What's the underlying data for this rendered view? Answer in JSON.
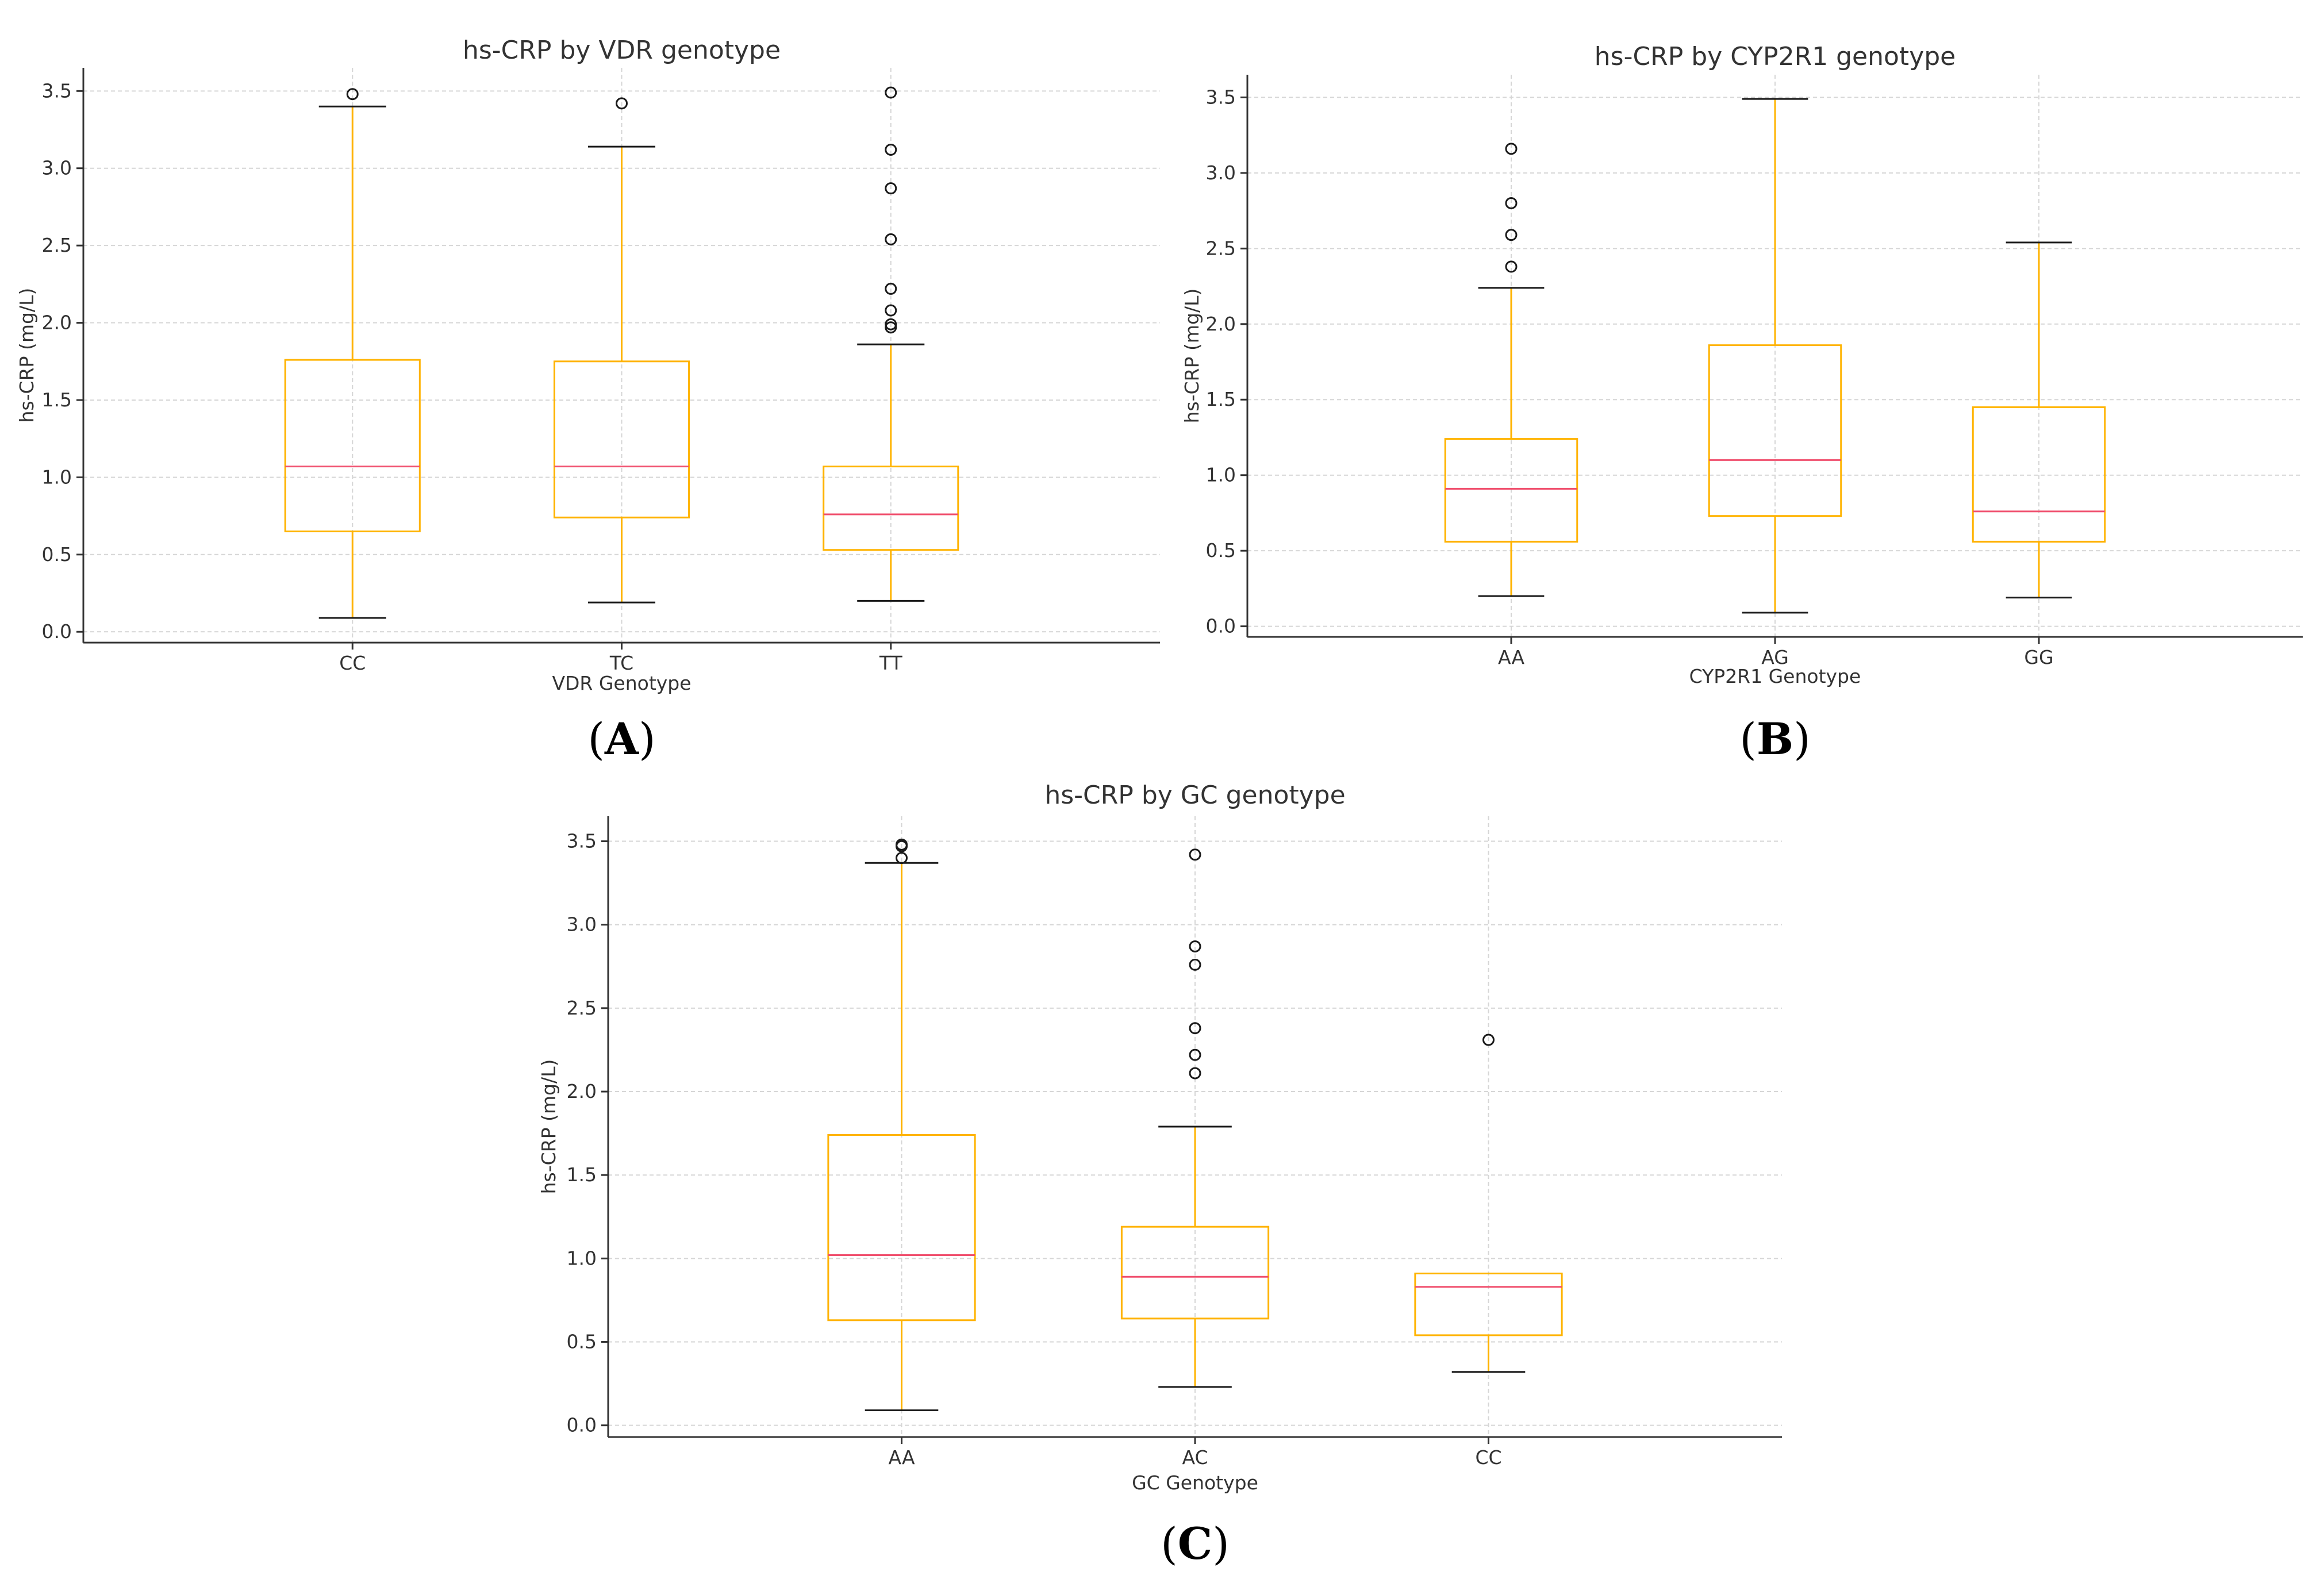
{
  "colors": {
    "box": "#FFB300",
    "whisker": "#FFB300",
    "median": "#F0506E",
    "cap": "#1a1a1a",
    "flier": "#1a1a1a",
    "grid": "#d6d6d6",
    "axis": "#333333"
  },
  "chart_data": [
    {
      "id": "A",
      "type": "box",
      "panel_label": "A",
      "title": "hs-CRP by VDR genotype",
      "xlabel": "VDR Genotype",
      "ylabel": "hs-CRP (mg/L)",
      "ylim": [
        -0.07,
        3.65
      ],
      "yticks": [
        0.0,
        0.5,
        1.0,
        1.5,
        2.0,
        2.5,
        3.0,
        3.5
      ],
      "ytick_labels": [
        "0.0",
        "0.5",
        "1.0",
        "1.5",
        "2.0",
        "2.5",
        "3.0",
        "3.5"
      ],
      "grid": true,
      "categories": [
        "CC",
        "TC",
        "TT"
      ],
      "boxes": [
        {
          "label": "CC",
          "whislo": 0.09,
          "q1": 0.65,
          "med": 1.07,
          "q3": 1.76,
          "whishi": 3.4,
          "fliers": [
            3.48
          ]
        },
        {
          "label": "TC",
          "whislo": 0.19,
          "q1": 0.74,
          "med": 1.07,
          "q3": 1.75,
          "whishi": 3.14,
          "fliers": [
            3.42
          ]
        },
        {
          "label": "TT",
          "whislo": 0.2,
          "q1": 0.53,
          "med": 0.76,
          "q3": 1.07,
          "whishi": 1.86,
          "fliers": [
            1.97,
            1.99,
            2.08,
            2.22,
            2.54,
            2.87,
            3.12,
            3.49
          ]
        }
      ]
    },
    {
      "id": "B",
      "type": "box",
      "panel_label": "B",
      "title": "hs-CRP by CYP2R1 genotype",
      "xlabel": "CYP2R1 Genotype",
      "ylabel": "hs-CRP (mg/L)",
      "ylim": [
        -0.07,
        3.65
      ],
      "yticks": [
        0.0,
        0.5,
        1.0,
        1.5,
        2.0,
        2.5,
        3.0,
        3.5
      ],
      "ytick_labels": [
        "0.0",
        "0.5",
        "1.0",
        "1.5",
        "2.0",
        "2.5",
        "3.0",
        "3.5"
      ],
      "grid": true,
      "categories": [
        "AA",
        "AG",
        "GG"
      ],
      "boxes": [
        {
          "label": "AA",
          "whislo": 0.2,
          "q1": 0.56,
          "med": 0.91,
          "q3": 1.24,
          "whishi": 2.24,
          "fliers": [
            2.38,
            2.59,
            2.8,
            3.16
          ]
        },
        {
          "label": "AG",
          "whislo": 0.09,
          "q1": 0.73,
          "med": 1.1,
          "q3": 1.86,
          "whishi": 3.49,
          "fliers": []
        },
        {
          "label": "GG",
          "whislo": 0.19,
          "q1": 0.56,
          "med": 0.76,
          "q3": 1.45,
          "whishi": 2.54,
          "fliers": []
        }
      ]
    },
    {
      "id": "C",
      "type": "box",
      "panel_label": "C",
      "title": "hs-CRP by GC genotype",
      "xlabel": "GC Genotype",
      "ylabel": "hs-CRP (mg/L)",
      "ylim": [
        -0.07,
        3.65
      ],
      "yticks": [
        0.0,
        0.5,
        1.0,
        1.5,
        2.0,
        2.5,
        3.0,
        3.5
      ],
      "ytick_labels": [
        "0.0",
        "0.5",
        "1.0",
        "1.5",
        "2.0",
        "2.5",
        "3.0",
        "3.5"
      ],
      "grid": true,
      "categories": [
        "AA",
        "AC",
        "CC"
      ],
      "boxes": [
        {
          "label": "AA",
          "whislo": 0.09,
          "q1": 0.63,
          "med": 1.02,
          "q3": 1.74,
          "whishi": 3.37,
          "fliers": [
            3.4,
            3.47,
            3.48
          ]
        },
        {
          "label": "AC",
          "whislo": 0.23,
          "q1": 0.64,
          "med": 0.89,
          "q3": 1.19,
          "whishi": 1.79,
          "fliers": [
            2.11,
            2.22,
            2.38,
            2.76,
            2.87,
            3.42
          ]
        },
        {
          "label": "CC",
          "whislo": 0.32,
          "q1": 0.54,
          "med": 0.83,
          "q3": 0.91,
          "whishi": 0.91,
          "fliers": [
            2.31
          ]
        }
      ]
    }
  ]
}
